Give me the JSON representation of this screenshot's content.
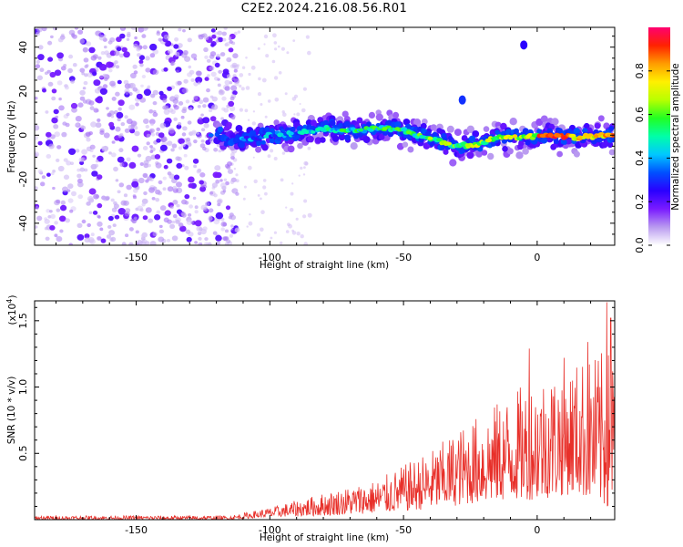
{
  "title": "C2E2.2024.216.08.56.R01",
  "chart_data": [
    {
      "type": "heatmap",
      "xlabel": "Height of straight line (km)",
      "ylabel": "Frequency (Hz)",
      "xlim": [
        -188,
        29
      ],
      "ylim": [
        -50,
        49
      ],
      "xticks": [
        -150,
        -100,
        -50,
        0
      ],
      "xtick_labels": [
        "-150",
        "-100",
        "-50",
        "0"
      ],
      "yticks": [
        -40,
        -20,
        0,
        20,
        40
      ],
      "ytick_labels": [
        "-40",
        "-20",
        "0",
        "20",
        "40"
      ],
      "noise_region_x": [
        -188,
        -115
      ],
      "signal_start_x": -120,
      "band_center_hz": [
        {
          "x": -118,
          "y": -3
        },
        {
          "x": -110,
          "y": -2
        },
        {
          "x": -100,
          "y": 0
        },
        {
          "x": -90,
          "y": 1
        },
        {
          "x": -80,
          "y": 3
        },
        {
          "x": -70,
          "y": 2
        },
        {
          "x": -60,
          "y": 3
        },
        {
          "x": -52,
          "y": 3
        },
        {
          "x": -45,
          "y": 0
        },
        {
          "x": -38,
          "y": -2
        },
        {
          "x": -30,
          "y": -5
        },
        {
          "x": -22,
          "y": -4
        },
        {
          "x": -15,
          "y": -1
        },
        {
          "x": -5,
          "y": -1
        },
        {
          "x": 5,
          "y": 0
        },
        {
          "x": 15,
          "y": -1
        },
        {
          "x": 29,
          "y": 0
        }
      ],
      "isolated_blobs": [
        {
          "x": -28,
          "y": 16,
          "amplitude": 0.3
        },
        {
          "x": -5,
          "y": 41,
          "amplitude": 0.25
        }
      ],
      "colorbar": {
        "label": "Normalized spectral amplitude",
        "range": [
          0,
          1
        ],
        "ticks": [
          0.0,
          0.2,
          0.4,
          0.6,
          0.8
        ],
        "tick_labels": [
          "0.0",
          "0.2",
          "0.4",
          "0.6",
          "0.8"
        ],
        "colors": [
          "#ffffff",
          "#b99af0",
          "#7a1bff",
          "#2a00ff",
          "#0050ff",
          "#00c8ff",
          "#00ffa8",
          "#22ff22",
          "#b8ff00",
          "#fff000",
          "#ff9c00",
          "#ff2200",
          "#ff0070"
        ]
      }
    },
    {
      "type": "line",
      "xlabel": "Height of straight line (km)",
      "ylabel": "SNR (10 * v/v)",
      "y_multiplier_label": "(x10",
      "y_multiplier_exp": "4",
      "y_multiplier_close": ")",
      "xlim": [
        -188,
        29
      ],
      "ylim": [
        0,
        1.65
      ],
      "xticks": [
        -150,
        -100,
        -50,
        0
      ],
      "xtick_labels": [
        "-150",
        "-100",
        "-50",
        "0"
      ],
      "yticks": [
        0.5,
        1.0,
        1.5
      ],
      "ytick_labels": [
        "0.5",
        "1.0",
        "1.5"
      ],
      "line_color": "#e8302a",
      "envelope": [
        {
          "x": -188,
          "lo": 0.0,
          "hi": 0.03
        },
        {
          "x": -115,
          "lo": 0.0,
          "hi": 0.03
        },
        {
          "x": -100,
          "lo": 0.02,
          "hi": 0.09
        },
        {
          "x": -80,
          "lo": 0.03,
          "hi": 0.2
        },
        {
          "x": -60,
          "lo": 0.05,
          "hi": 0.3
        },
        {
          "x": -40,
          "lo": 0.08,
          "hi": 0.52
        },
        {
          "x": -25,
          "lo": 0.12,
          "hi": 0.75
        },
        {
          "x": -10,
          "lo": 0.15,
          "hi": 0.95
        },
        {
          "x": 0,
          "lo": 0.15,
          "hi": 1.1
        },
        {
          "x": 15,
          "lo": 0.2,
          "hi": 1.2
        },
        {
          "x": 29,
          "lo": 0.05,
          "hi": 1.3
        }
      ],
      "peaks": [
        {
          "x": -3,
          "y": 1.29
        },
        {
          "x": 10,
          "y": 1.22
        },
        {
          "x": 19,
          "y": 1.34
        },
        {
          "x": 26,
          "y": 1.64
        },
        {
          "x": 27.5,
          "y": 1.52
        }
      ]
    }
  ]
}
